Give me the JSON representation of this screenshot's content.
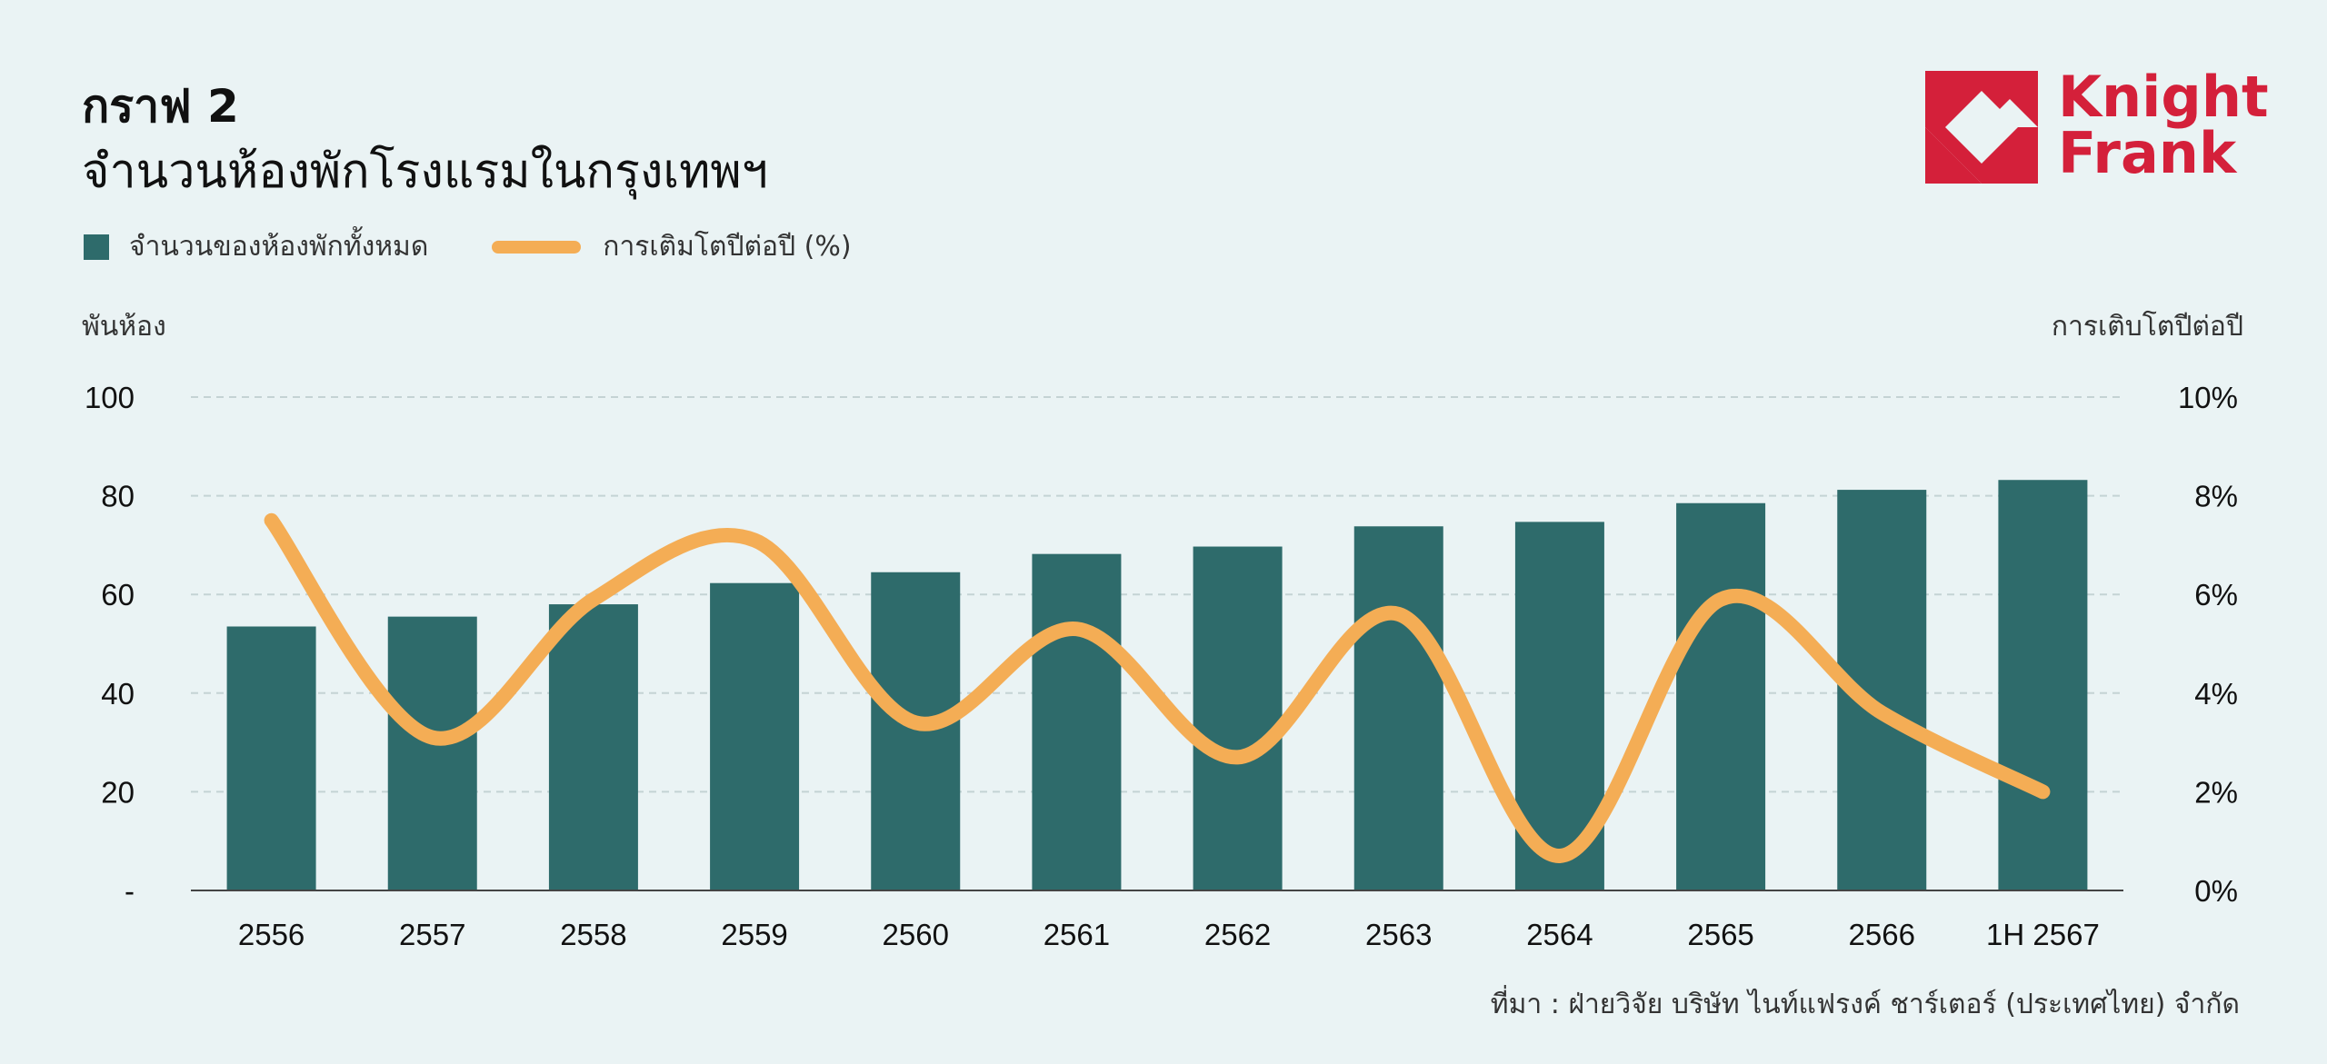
{
  "header": {
    "kicker": "กราฟ 2",
    "title": "จำนวนห้องพักโรงแรมในกรุงเทพฯ"
  },
  "logo": {
    "line1": "Knight",
    "line2": "Frank"
  },
  "legend": {
    "bar_label": "จำนวนของห้องพักทั้งหมด",
    "line_label": "การเติมโตปีต่อปี (%)"
  },
  "source": "ที่มา : ฝ่ายวิจัย บริษัท ไนท์แฟรงค์ ชาร์เตอร์ (ประเทศไทย) จำกัด",
  "colors": {
    "bar": "#2e6b6b",
    "line": "#f4ad55",
    "brand": "#d4203a",
    "background": "#eaf3f4"
  },
  "chart_data": {
    "type": "bar",
    "categories": [
      "2556",
      "2557",
      "2558",
      "2559",
      "2560",
      "2561",
      "2562",
      "2563",
      "2564",
      "2565",
      "2566",
      "1H 2567"
    ],
    "series": [
      {
        "name": "จำนวนของห้องพักทั้งหมด",
        "type": "bar",
        "axis": "left",
        "values": [
          53.5,
          55.5,
          58,
          62.3,
          64.5,
          68.2,
          69.7,
          73.8,
          74.7,
          78.5,
          81.2,
          83.2
        ]
      },
      {
        "name": "การเติมโตปีต่อปี (%)",
        "type": "line",
        "axis": "right",
        "values": [
          7.5,
          3.1,
          5.9,
          7.1,
          3.4,
          5.3,
          2.7,
          5.6,
          0.7,
          5.9,
          3.6,
          2.0
        ]
      }
    ],
    "ylabel": "พันห้อง",
    "y2label": "การเติบโตปีต่อปี",
    "ylim": [
      0,
      100
    ],
    "y_ticks": [
      "-",
      "20",
      "40",
      "60",
      "80",
      "100"
    ],
    "y2lim": [
      0,
      10
    ],
    "y2_ticks": [
      "0%",
      "2%",
      "4%",
      "6%",
      "8%",
      "10%"
    ],
    "grid": true,
    "legend_position": "top-left"
  }
}
